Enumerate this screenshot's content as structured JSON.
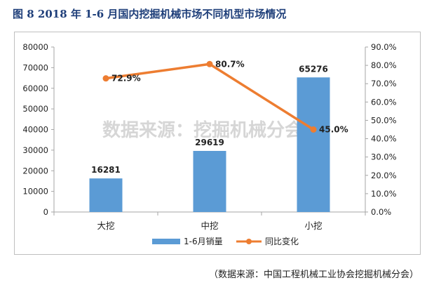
{
  "title": "图 8   2018 年 1-6 月国内挖掘机械市场不同机型市场情况",
  "source": "（数据来源：中国工程机械工业协会挖掘机械分会）",
  "watermark": "数据来源：挖掘机械分会",
  "colors": {
    "bar": "#5b9bd5",
    "line": "#ed7d31",
    "title": "#1f3f7a"
  },
  "chart_data": {
    "type": "bar",
    "categories": [
      "大挖",
      "中挖",
      "小挖"
    ],
    "series": [
      {
        "name": "1-6月销量",
        "type": "bar",
        "axis": "left",
        "values": [
          16281,
          29619,
          65276
        ]
      },
      {
        "name": "同比变化",
        "type": "line",
        "axis": "right",
        "values": [
          72.9,
          80.7,
          45.0
        ]
      }
    ],
    "data_labels": {
      "bar": [
        "16281",
        "29619",
        "65276"
      ],
      "line": [
        "72.9%",
        "80.7%",
        "45.0%"
      ]
    },
    "y_left": {
      "ylim": [
        0,
        80000
      ],
      "ticks": [
        "0",
        "10000",
        "20000",
        "30000",
        "40000",
        "50000",
        "60000",
        "70000",
        "80000"
      ]
    },
    "y_right": {
      "ylim": [
        0,
        90
      ],
      "ticks": [
        "0.0%",
        "10.0%",
        "20.0%",
        "30.0%",
        "40.0%",
        "50.0%",
        "60.0%",
        "70.0%",
        "80.0%",
        "90.0%"
      ]
    },
    "grid": false,
    "legend": "bottom",
    "legend_labels": [
      "1-6月销量",
      "同比变化"
    ]
  }
}
